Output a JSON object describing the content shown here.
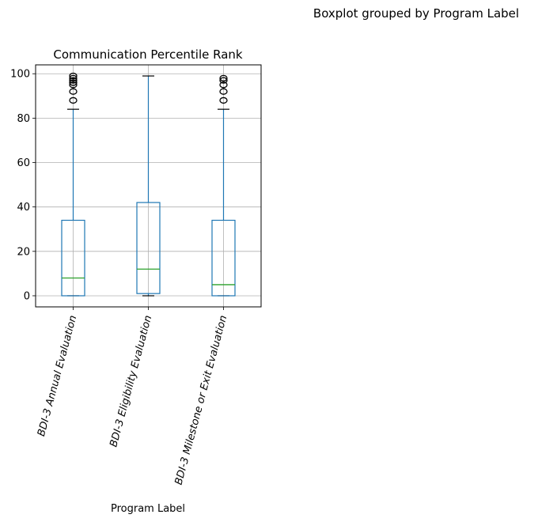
{
  "figure": {
    "suptitle": "Boxplot grouped by Program Label"
  },
  "chart_data": {
    "type": "boxplot",
    "title": "Communication Percentile Rank",
    "xlabel": "Program Label",
    "ylabel": "",
    "ylim": [
      -5,
      104
    ],
    "yticks": [
      0,
      20,
      40,
      60,
      80,
      100
    ],
    "grid": true,
    "colors": {
      "box": "#1f77b4",
      "median": "#2ca02c",
      "grid": "#b0b0b0",
      "axes": "#000000"
    },
    "groups": [
      {
        "label": "BDI-3 Annual Evaluation",
        "whisker_low": 0,
        "q1": 0,
        "median": 8,
        "q3": 34,
        "whisker_high": 84,
        "outliers": [
          88,
          92,
          95,
          96,
          97,
          98,
          99
        ]
      },
      {
        "label": "BDI-3 Eligibility Evaluation",
        "whisker_low": 0,
        "q1": 1,
        "median": 12,
        "q3": 42,
        "whisker_high": 99,
        "outliers": []
      },
      {
        "label": "BDI-3 Milestone or Exit Evaluation",
        "whisker_low": 0,
        "q1": 0,
        "median": 5,
        "q3": 34,
        "whisker_high": 84,
        "outliers": [
          88,
          92,
          95,
          97,
          98
        ]
      }
    ]
  }
}
